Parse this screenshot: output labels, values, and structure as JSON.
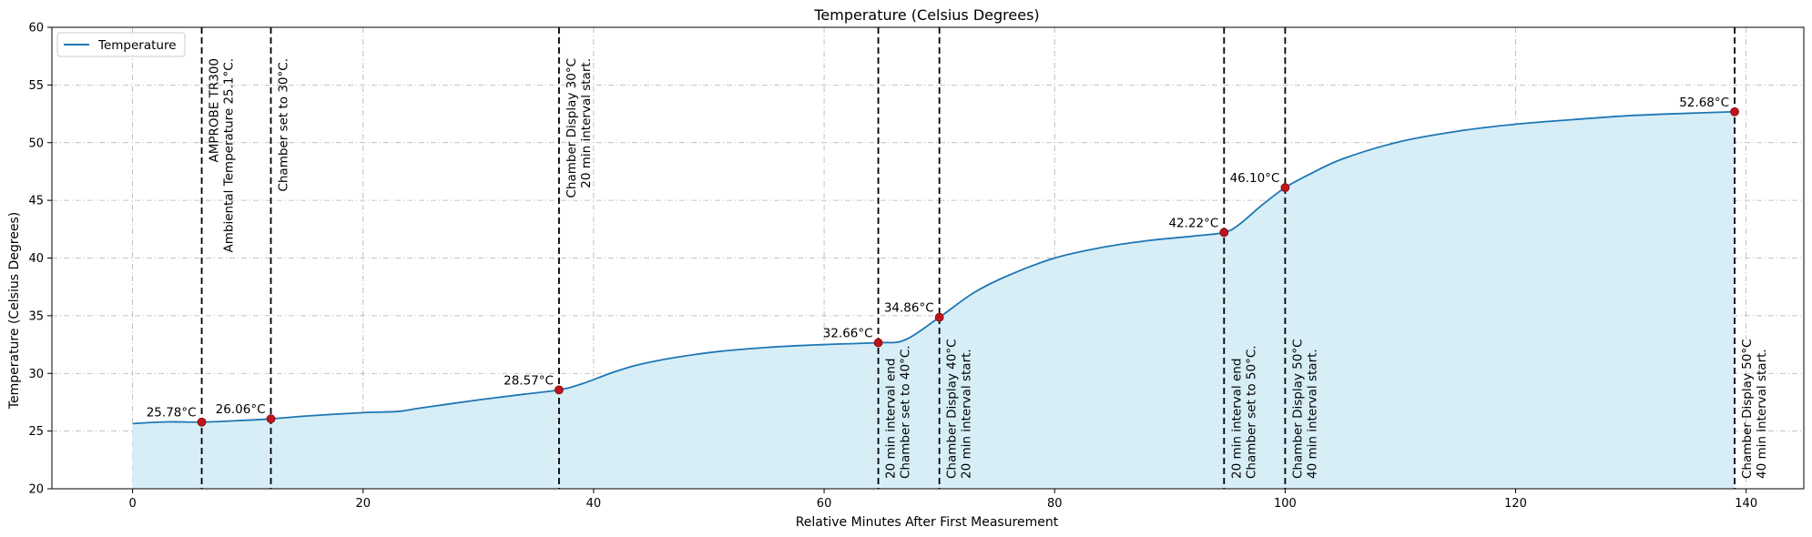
{
  "chart_data": {
    "type": "area",
    "title": "Temperature (Celsius Degrees)",
    "xlabel": "Relative Minutes After First Measurement",
    "ylabel": "Temperature (Celsius Degrees)",
    "xlim": [
      -7,
      145
    ],
    "ylim": [
      20,
      60
    ],
    "x_ticks": [
      0,
      20,
      40,
      60,
      80,
      100,
      120,
      140
    ],
    "y_ticks": [
      20,
      25,
      30,
      35,
      40,
      45,
      50,
      55,
      60
    ],
    "grid": true,
    "legend": {
      "position": "top-left",
      "entries": [
        "Temperature"
      ]
    },
    "colors": {
      "line": "#1f77b4",
      "fill": "#d7eef7",
      "marker": "#c0141c",
      "vline": "#000000",
      "grid": "#b0b0b0"
    },
    "series": [
      {
        "name": "Temperature",
        "x": [
          0,
          3,
          6,
          9,
          12,
          15,
          20,
          23,
          25,
          30,
          34,
          37,
          39,
          42,
          45,
          50,
          55,
          60,
          64.7,
          67,
          70,
          73,
          76,
          80,
          84,
          88,
          92,
          94.7,
          96,
          98,
          100,
          102,
          105,
          110,
          115,
          120,
          125,
          130,
          135,
          139
        ],
        "y": [
          25.65,
          25.8,
          25.78,
          25.9,
          26.06,
          26.3,
          26.6,
          26.7,
          27.0,
          27.7,
          28.2,
          28.57,
          29.1,
          30.2,
          31.0,
          31.8,
          32.25,
          32.5,
          32.66,
          32.9,
          34.86,
          37.0,
          38.5,
          40.0,
          40.9,
          41.5,
          41.9,
          42.22,
          42.9,
          44.6,
          46.1,
          47.2,
          48.6,
          50.1,
          51.0,
          51.6,
          52.0,
          52.35,
          52.55,
          52.68
        ]
      }
    ],
    "points": [
      {
        "x": 6,
        "y": 25.78,
        "label": "25.78°C"
      },
      {
        "x": 12,
        "y": 26.06,
        "label": "26.06°C"
      },
      {
        "x": 37,
        "y": 28.57,
        "label": "28.57°C"
      },
      {
        "x": 64.7,
        "y": 32.66,
        "label": "32.66°C"
      },
      {
        "x": 70,
        "y": 34.86,
        "label": "34.86°C"
      },
      {
        "x": 94.7,
        "y": 42.22,
        "label": "42.22°C"
      },
      {
        "x": 100,
        "y": 46.1,
        "label": "46.10°C"
      },
      {
        "x": 139,
        "y": 52.68,
        "label": "52.68°C"
      }
    ],
    "annotations": [
      {
        "x": 6,
        "lines": [
          "AMPROBE TR300",
          "Ambiental Temperature 25.1°C."
        ],
        "anchor": "top"
      },
      {
        "x": 12,
        "lines": [
          "Chamber set to 30°C."
        ],
        "anchor": "top"
      },
      {
        "x": 37,
        "lines": [
          "Chamber Display 30°C",
          "20 min interval start."
        ],
        "anchor": "top"
      },
      {
        "x": 64.7,
        "lines": [
          "20 min interval end",
          "Chamber set to 40°C."
        ],
        "anchor": "bottom"
      },
      {
        "x": 70,
        "lines": [
          "Chamber Display 40°C",
          "20 min interval start."
        ],
        "anchor": "bottom"
      },
      {
        "x": 94.7,
        "lines": [
          "20 min interval end",
          "Chamber set to 50°C."
        ],
        "anchor": "bottom"
      },
      {
        "x": 100,
        "lines": [
          "Chamber Display 50°C",
          "40 min interval start."
        ],
        "anchor": "bottom"
      },
      {
        "x": 139,
        "lines": [
          "Chamber Display 50°C",
          "40 min interval start."
        ],
        "anchor": "bottom"
      }
    ]
  }
}
